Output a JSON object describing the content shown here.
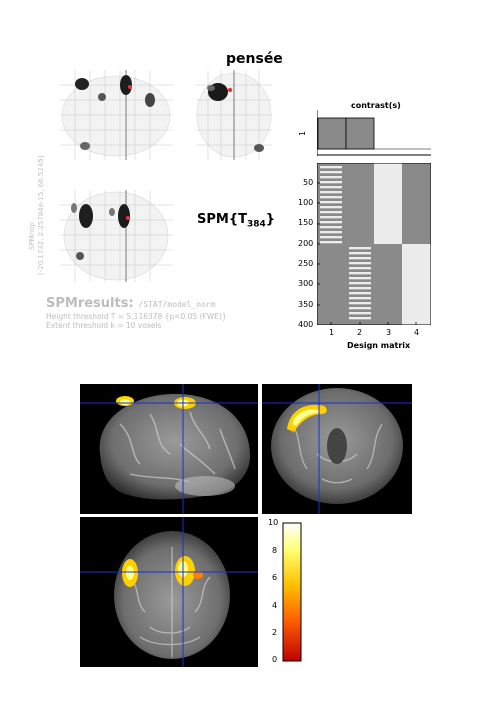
{
  "title": "pensée",
  "stat_label": {
    "spm": "SPM",
    "brace_open": "{",
    "t": "T",
    "df": "384",
    "brace_close": "}"
  },
  "results": {
    "heading": "SPMresults:",
    "path": " /STAT/model_norm",
    "height_threshold": "Height threshold T = 5.116378  {p<0.05 (FWE)}",
    "extent_threshold": "Extent threshold k = 10 voxels"
  },
  "side_label": {
    "mip": "SPMmip",
    "coords": "[-20.1732, 2.25784e-15, 66.5245]"
  },
  "contrast": {
    "title": "contrast(s)",
    "index": "1"
  },
  "design_matrix": {
    "xlabel": "Design matrix",
    "y_ticks": [
      "50",
      "100",
      "150",
      "200",
      "250",
      "300",
      "350",
      "400"
    ],
    "x_ticks": [
      "1",
      "2",
      "3",
      "4"
    ]
  },
  "colorbar": {
    "ticks": [
      "10",
      "8",
      "6",
      "4",
      "2",
      "0"
    ],
    "colors": [
      "#ffffff",
      "#ffff80",
      "#ffd000",
      "#ff8000",
      "#ff3000",
      "#cc0000"
    ]
  },
  "colors": {
    "accent_blue": "#1a2fd1",
    "dm_gray": "#8a8a8a",
    "dm_light": "#ececec"
  }
}
